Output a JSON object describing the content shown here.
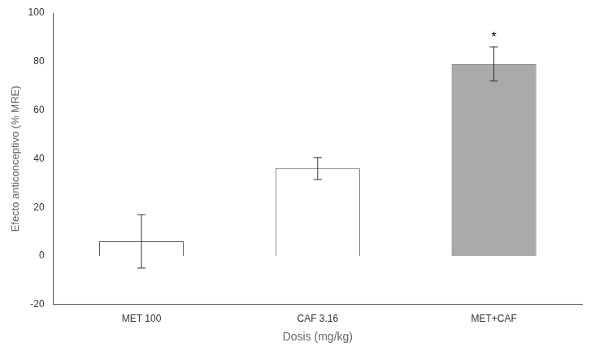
{
  "chart_data": {
    "type": "bar",
    "categories": [
      "MET 100",
      "CAF 3.16",
      "MET+CAF"
    ],
    "values": [
      6.0,
      36.0,
      79.0
    ],
    "errors": [
      11.0,
      4.5,
      7.0
    ],
    "colors": [
      "white",
      "white",
      "#aaaaaa"
    ],
    "xlabel": "Dosis (mg/kg)",
    "ylabel": "Efecto anticonceptivo (% MRE)",
    "ylim": [
      -20,
      100
    ],
    "yticks": [
      -20,
      0,
      20,
      40,
      60,
      80,
      100
    ],
    "grid": false,
    "annotations": [
      {
        "category": "MET+CAF",
        "text": "*"
      }
    ]
  }
}
